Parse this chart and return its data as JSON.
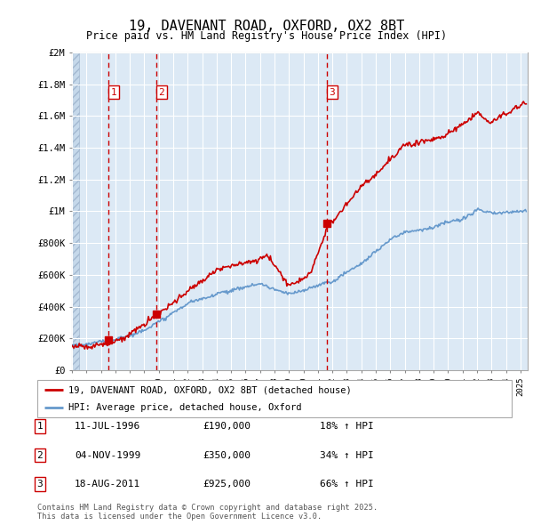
{
  "title": "19, DAVENANT ROAD, OXFORD, OX2 8BT",
  "subtitle": "Price paid vs. HM Land Registry's House Price Index (HPI)",
  "ylim": [
    0,
    2000000
  ],
  "xlim_start": 1994.0,
  "xlim_end": 2025.5,
  "background_color": "#dce9f5",
  "grid_color": "#ffffff",
  "sale_dates": [
    1996.53,
    1999.84,
    2011.63
  ],
  "sale_prices": [
    190000,
    350000,
    925000
  ],
  "sale_labels": [
    "1",
    "2",
    "3"
  ],
  "legend_line1": "19, DAVENANT ROAD, OXFORD, OX2 8BT (detached house)",
  "legend_line2": "HPI: Average price, detached house, Oxford",
  "table_rows": [
    {
      "num": "1",
      "date": "11-JUL-1996",
      "price": "£190,000",
      "pct": "18% ↑ HPI"
    },
    {
      "num": "2",
      "date": "04-NOV-1999",
      "price": "£350,000",
      "pct": "34% ↑ HPI"
    },
    {
      "num": "3",
      "date": "18-AUG-2011",
      "price": "£925,000",
      "pct": "66% ↑ HPI"
    }
  ],
  "footnote": "Contains HM Land Registry data © Crown copyright and database right 2025.\nThis data is licensed under the Open Government Licence v3.0.",
  "red_line_color": "#cc0000",
  "blue_line_color": "#6699cc",
  "sale_marker_color": "#cc0000",
  "dashed_line_color": "#cc0000",
  "hatch_end": 1994.5
}
